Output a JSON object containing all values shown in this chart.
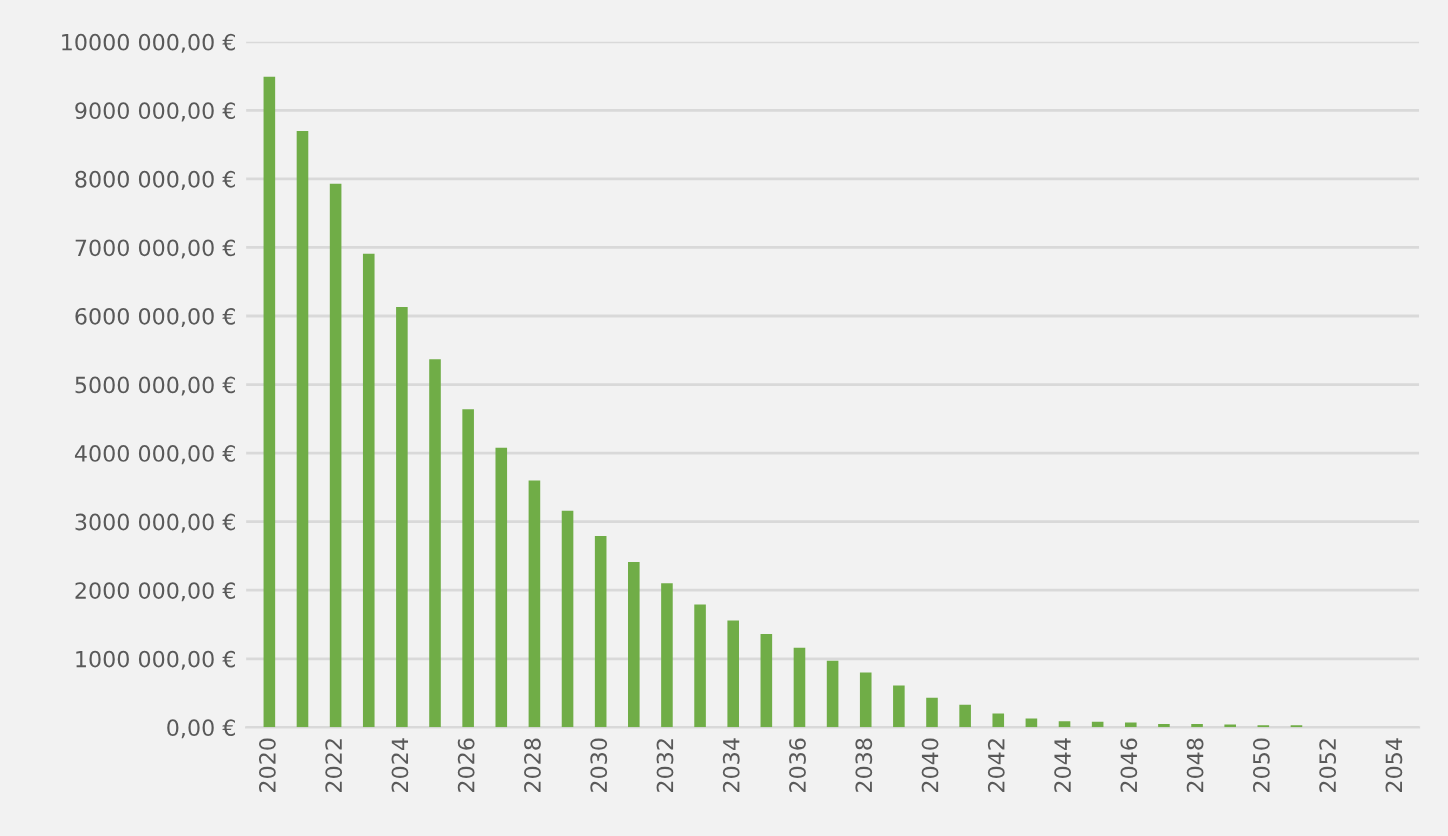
{
  "chart_data": {
    "type": "bar",
    "categories": [
      "2020",
      null,
      "2022",
      null,
      "2024",
      null,
      "2026",
      null,
      "2028",
      null,
      "2030",
      null,
      "2032",
      null,
      "2034",
      null,
      "2036",
      null,
      "2038",
      null,
      "2040",
      null,
      "2042",
      null,
      "2044",
      null,
      "2046",
      null,
      "2048",
      null,
      "2050",
      null,
      "2052",
      null,
      "2054"
    ],
    "values": [
      9490000,
      8700000,
      7930000,
      6910000,
      6130000,
      5370000,
      4640000,
      4080000,
      3600000,
      3160000,
      2790000,
      2410000,
      2100000,
      1790000,
      1560000,
      1360000,
      1160000,
      970000,
      800000,
      610000,
      430000,
      330000,
      200000,
      130000,
      90000,
      80000,
      70000,
      50000,
      50000,
      40000,
      30000,
      30000,
      0,
      0,
      0
    ],
    "color": "#70ad47",
    "ylim": [
      0,
      10000000
    ],
    "yticks": [
      {
        "value": 0,
        "label": "0,00 €"
      },
      {
        "value": 1000000,
        "label": "1000 000,00 €"
      },
      {
        "value": 2000000,
        "label": "2000 000,00 €"
      },
      {
        "value": 3000000,
        "label": "3000 000,00 €"
      },
      {
        "value": 4000000,
        "label": "4000 000,00 €"
      },
      {
        "value": 5000000,
        "label": "5000 000,00 €"
      },
      {
        "value": 6000000,
        "label": "6000 000,00 €"
      },
      {
        "value": 7000000,
        "label": "7000 000,00 €"
      },
      {
        "value": 8000000,
        "label": "8000 000,00 €"
      },
      {
        "value": 9000000,
        "label": "9000 000,00 €"
      },
      {
        "value": 10000000,
        "label": "10000 000,00 €"
      }
    ],
    "grid": "y"
  }
}
